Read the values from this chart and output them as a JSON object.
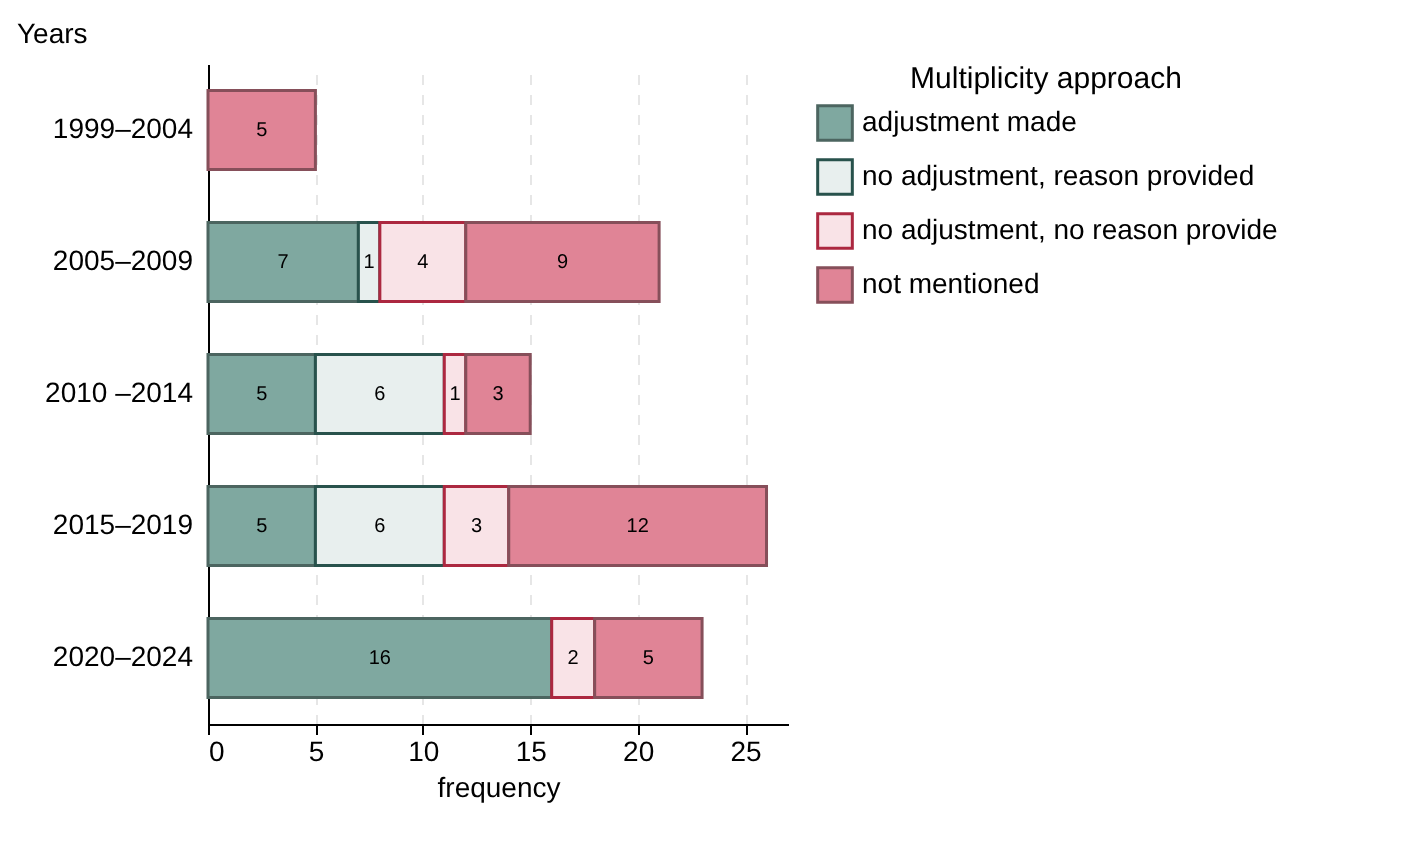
{
  "chart_data": {
    "type": "bar",
    "orientation": "horizontal",
    "stacked": true,
    "ylabel": "Years",
    "xlabel": "frequency",
    "legend_title": "Multiplicity approach",
    "legend": "right",
    "grid": "x",
    "data_labels": true,
    "categories": [
      "1999–2004",
      "2005–2009",
      "2010 –2014",
      "2015–2019",
      "2020–2024"
    ],
    "xlim": [
      0,
      27
    ],
    "xticks": [
      0,
      5,
      10,
      15,
      20,
      25
    ],
    "series": [
      {
        "name": "adjustment made",
        "color": "#7fa8a0",
        "values": [
          null,
          7,
          5,
          5,
          16
        ]
      },
      {
        "name": "no adjustment, reason provided",
        "color": "#e8efee",
        "values": [
          null,
          1,
          6,
          6,
          null
        ]
      },
      {
        "name": "no adjustment, no reason provide",
        "color": "#f9e3e7",
        "values": [
          null,
          4,
          1,
          3,
          2
        ]
      },
      {
        "name": "not mentioned",
        "color": "#e08496",
        "values": [
          5,
          9,
          3,
          12,
          5
        ]
      }
    ]
  }
}
